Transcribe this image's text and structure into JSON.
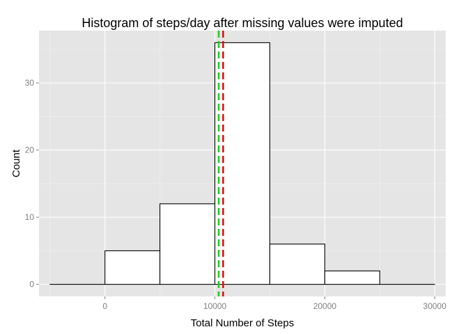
{
  "chart_data": {
    "type": "histogram",
    "title": "Histogram of steps/day after missing values were imputed",
    "xlabel": "Total Number of Steps",
    "ylabel": "Count",
    "xlim": [
      -6000,
      31000
    ],
    "ylim": [
      -1.8,
      37.8
    ],
    "x_ticks": [
      0,
      10000,
      20000,
      30000
    ],
    "x_tick_labels": [
      "0",
      "10000",
      "20000",
      "30000"
    ],
    "y_ticks": [
      0,
      10,
      20,
      30
    ],
    "y_tick_labels": [
      "0",
      "10",
      "20",
      "30"
    ],
    "bin_width": 5000,
    "bins": [
      {
        "x_start": -5000,
        "x_end": 0,
        "count": 0
      },
      {
        "x_start": 0,
        "x_end": 5000,
        "count": 5
      },
      {
        "x_start": 5000,
        "x_end": 10000,
        "count": 12
      },
      {
        "x_start": 10000,
        "x_end": 15000,
        "count": 36
      },
      {
        "x_start": 15000,
        "x_end": 20000,
        "count": 6
      },
      {
        "x_start": 20000,
        "x_end": 25000,
        "count": 2
      },
      {
        "x_start": 25000,
        "x_end": 30000,
        "count": 0
      }
    ],
    "reference_lines": [
      {
        "x": 10350,
        "color": "#22cc22",
        "style": "dashed"
      },
      {
        "x": 10750,
        "color": "#dd1111",
        "style": "dashed"
      }
    ],
    "grid": true,
    "colors": {
      "panel_background": "#e5e5e5",
      "grid_major": "#ffffff",
      "grid_minor": "#f2f2f2",
      "bar_fill": "#ffffff",
      "bar_stroke": "#000000"
    }
  }
}
